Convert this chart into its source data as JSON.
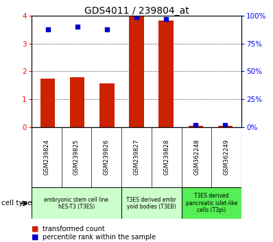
{
  "title": "GDS4011 / 239804_at",
  "samples": [
    "GSM239824",
    "GSM239825",
    "GSM239826",
    "GSM239827",
    "GSM239828",
    "GSM362248",
    "GSM362249"
  ],
  "transformed_count": [
    1.75,
    1.8,
    1.58,
    3.98,
    3.82,
    0.04,
    0.04
  ],
  "percentile_rank_raw": [
    88.0,
    90.0,
    87.5,
    99.0,
    97.0,
    2.0,
    2.0
  ],
  "bar_color": "#cc2200",
  "dot_color": "#0000cc",
  "ylim_left": [
    0,
    4
  ],
  "ylim_right": [
    0,
    100
  ],
  "yticks_left": [
    0,
    1,
    2,
    3,
    4
  ],
  "yticks_right": [
    0,
    25,
    50,
    75,
    100
  ],
  "ytick_labels_right": [
    "0%",
    "25%",
    "50%",
    "75%",
    "100%"
  ],
  "groups": [
    {
      "label": "embryonic stem cell line\nhES-T3 (T3ES)",
      "start": 0,
      "end": 3,
      "color": "#ccffcc"
    },
    {
      "label": "T3ES derived embr\nyoid bodies (T3EB)",
      "start": 3,
      "end": 5,
      "color": "#ccffcc"
    },
    {
      "label": "T3ES derived\npancreatic islet-like\ncells (T3pi)",
      "start": 5,
      "end": 7,
      "color": "#55ee55"
    }
  ],
  "cell_type_label": "cell type",
  "legend_red_label": "transformed count",
  "legend_blue_label": "percentile rank within the sample",
  "background_color": "#ffffff",
  "tick_area_color": "#c8c8c8",
  "bar_width": 0.5
}
